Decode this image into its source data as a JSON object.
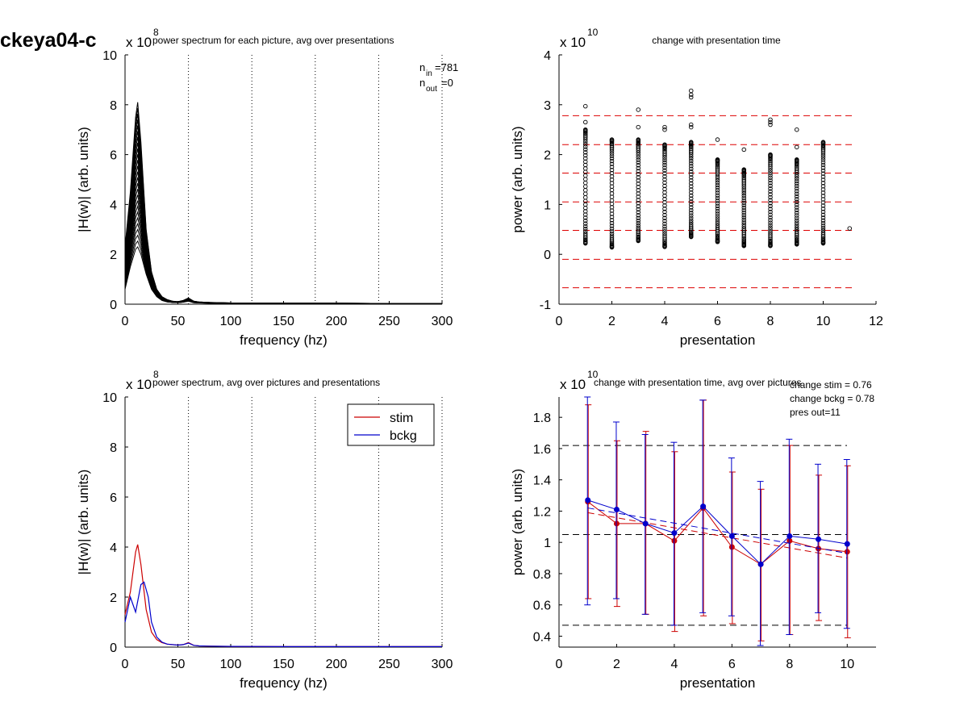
{
  "figure_label": "ckeya04-c",
  "colors": {
    "stim": "#cc0000",
    "bckg": "#0000cc",
    "guide_red": "#dd0000",
    "guide_black": "#000000",
    "trace": "#000000"
  },
  "chart_data": [
    {
      "type": "line",
      "title": "power spectrum for each picture, avg over presentations",
      "xlabel": "frequency (hz)",
      "ylabel": "|H(w)| (arb. units)",
      "exponent": "x 10",
      "exponent_power": "8",
      "xlim": [
        0,
        300
      ],
      "ylim": [
        0,
        10
      ],
      "xticks": [
        0,
        50,
        100,
        150,
        200,
        250,
        300
      ],
      "yticks": [
        0,
        2,
        4,
        6,
        8,
        10
      ],
      "vlines": [
        60,
        120,
        180,
        240,
        300
      ],
      "annotations": {
        "n_in_sym": "n",
        "n_in_sub": "in",
        "n_in_val": "=781",
        "n_out_sym": "n",
        "n_out_sub": "out",
        "n_out_val": "=0"
      },
      "base_spectrum": {
        "x": [
          0,
          5,
          10,
          12,
          15,
          20,
          25,
          30,
          35,
          40,
          45,
          50,
          55,
          60,
          65,
          70,
          80,
          100,
          150,
          200,
          250,
          300
        ],
        "y": [
          0.6,
          1.5,
          2.2,
          2.3,
          2.0,
          1.2,
          0.6,
          0.3,
          0.15,
          0.09,
          0.07,
          0.06,
          0.08,
          0.12,
          0.06,
          0.05,
          0.04,
          0.03,
          0.02,
          0.02,
          0.02,
          0.02
        ]
      },
      "peak_envelope": {
        "x": [
          0,
          5,
          10,
          12,
          15,
          20,
          25,
          30,
          35,
          40,
          45,
          50,
          55,
          60,
          65,
          70,
          80,
          100,
          150,
          200,
          250,
          300
        ],
        "y": [
          2.3,
          4.5,
          7.5,
          8.1,
          6.5,
          3.0,
          1.3,
          0.6,
          0.3,
          0.18,
          0.12,
          0.1,
          0.15,
          0.25,
          0.12,
          0.09,
          0.07,
          0.05,
          0.04,
          0.04,
          0.03,
          0.03
        ]
      },
      "trace_count": 26
    },
    {
      "type": "scatter",
      "title": "change with presentation time",
      "xlabel": "presentation",
      "ylabel": "power (arb. units)",
      "exponent": "x 10",
      "exponent_power": "10",
      "xlim": [
        0,
        12
      ],
      "ylim": [
        -1,
        4
      ],
      "xticks": [
        0,
        2,
        4,
        6,
        8,
        10,
        12
      ],
      "yticks": [
        -1,
        0,
        1,
        2,
        3,
        4
      ],
      "hlines": [
        2.78,
        2.2,
        1.63,
        1.05,
        0.48,
        -0.1,
        -0.67
      ],
      "groups": [
        {
          "x": 1,
          "min": 0.22,
          "max": 2.5,
          "outliers": [
            2.97,
            2.65
          ]
        },
        {
          "x": 2,
          "min": 0.14,
          "max": 2.3,
          "outliers": []
        },
        {
          "x": 3,
          "min": 0.27,
          "max": 2.3,
          "outliers": [
            2.9,
            2.55
          ]
        },
        {
          "x": 4,
          "min": 0.15,
          "max": 2.2,
          "outliers": [
            2.55,
            2.5
          ]
        },
        {
          "x": 5,
          "min": 0.35,
          "max": 2.25,
          "outliers": [
            3.28,
            3.2,
            3.15,
            2.6,
            2.55
          ]
        },
        {
          "x": 6,
          "min": 0.25,
          "max": 1.9,
          "outliers": [
            2.3
          ]
        },
        {
          "x": 7,
          "min": 0.17,
          "max": 1.7,
          "outliers": [
            2.1
          ]
        },
        {
          "x": 8,
          "min": 0.17,
          "max": 2.0,
          "outliers": [
            2.7,
            2.65,
            2.6
          ]
        },
        {
          "x": 9,
          "min": 0.2,
          "max": 1.9,
          "outliers": [
            2.5,
            2.15
          ]
        },
        {
          "x": 10,
          "min": 0.22,
          "max": 2.25,
          "outliers": []
        },
        {
          "x": 11,
          "min": 0.52,
          "max": 0.52,
          "outliers": []
        }
      ]
    },
    {
      "type": "line",
      "title": "power spectrum, avg over pictures and presentations",
      "xlabel": "frequency (hz)",
      "ylabel": "|H(w)| (arb. units)",
      "exponent": "x 10",
      "exponent_power": "8",
      "xlim": [
        0,
        300
      ],
      "ylim": [
        0,
        10
      ],
      "xticks": [
        0,
        50,
        100,
        150,
        200,
        250,
        300
      ],
      "yticks": [
        0,
        2,
        4,
        6,
        8,
        10
      ],
      "vlines": [
        60,
        120,
        180,
        240,
        300
      ],
      "legend": {
        "placement": "top-right"
      },
      "series": [
        {
          "name": "stim",
          "x": [
            0,
            5,
            10,
            12,
            15,
            20,
            25,
            30,
            35,
            40,
            50,
            55,
            60,
            65,
            70,
            80,
            100,
            150,
            200,
            250,
            300
          ],
          "y": [
            1.3,
            2.2,
            3.8,
            4.1,
            3.3,
            1.5,
            0.6,
            0.3,
            0.18,
            0.12,
            0.08,
            0.1,
            0.18,
            0.07,
            0.05,
            0.04,
            0.03,
            0.02,
            0.02,
            0.02,
            0.02
          ]
        },
        {
          "name": "bckg",
          "x": [
            0,
            5,
            10,
            15,
            18,
            22,
            25,
            30,
            35,
            40,
            50,
            55,
            60,
            65,
            70,
            80,
            100,
            150,
            200,
            250,
            300
          ],
          "y": [
            1.0,
            2.0,
            1.4,
            2.5,
            2.6,
            2.0,
            1.0,
            0.4,
            0.2,
            0.12,
            0.08,
            0.1,
            0.16,
            0.07,
            0.05,
            0.04,
            0.03,
            0.02,
            0.02,
            0.02,
            0.02
          ]
        }
      ]
    },
    {
      "type": "line",
      "title": "change with presentation time, avg over pictures",
      "xlabel": "presentation",
      "ylabel": "power (arb. units)",
      "exponent": "x 10",
      "exponent_power": "10",
      "xlim": [
        0,
        11
      ],
      "ylim": [
        0.33,
        1.93
      ],
      "xticks": [
        0,
        2,
        4,
        6,
        8,
        10
      ],
      "yticks": [
        0.4,
        0.6,
        0.8,
        1,
        1.2,
        1.4,
        1.6,
        1.8
      ],
      "ytick_labels": [
        "0.4",
        "0.6",
        "0.8",
        "1",
        "1.2",
        "1.4",
        "1.6",
        "1.8"
      ],
      "hlines": [
        1.62,
        1.05,
        0.47
      ],
      "annotations": [
        "change stim = 0.76",
        "change bckg = 0.78",
        "pres out=11"
      ],
      "series": [
        {
          "name": "stim",
          "x": [
            1,
            2,
            3,
            4,
            5,
            6,
            7,
            8,
            9,
            10
          ],
          "y": [
            1.26,
            1.12,
            1.12,
            1.01,
            1.22,
            0.97,
            0.86,
            1.01,
            0.96,
            0.94
          ],
          "err_hi": [
            1.88,
            1.65,
            1.71,
            1.58,
            1.91,
            1.45,
            1.34,
            1.62,
            1.43,
            1.49
          ],
          "err_lo": [
            0.64,
            0.59,
            0.54,
            0.43,
            0.53,
            0.48,
            0.37,
            0.41,
            0.5,
            0.39
          ],
          "trend": [
            1.19,
            0.9
          ]
        },
        {
          "name": "bckg",
          "x": [
            1,
            2,
            3,
            4,
            5,
            6,
            7,
            8,
            9,
            10
          ],
          "y": [
            1.27,
            1.21,
            1.12,
            1.06,
            1.23,
            1.04,
            0.86,
            1.04,
            1.02,
            0.99
          ],
          "err_hi": [
            1.93,
            1.77,
            1.69,
            1.64,
            1.91,
            1.54,
            1.39,
            1.66,
            1.5,
            1.53
          ],
          "err_lo": [
            0.6,
            0.64,
            0.54,
            0.47,
            0.55,
            0.53,
            0.34,
            0.41,
            0.55,
            0.45
          ],
          "trend": [
            1.22,
            0.93
          ]
        }
      ]
    }
  ]
}
